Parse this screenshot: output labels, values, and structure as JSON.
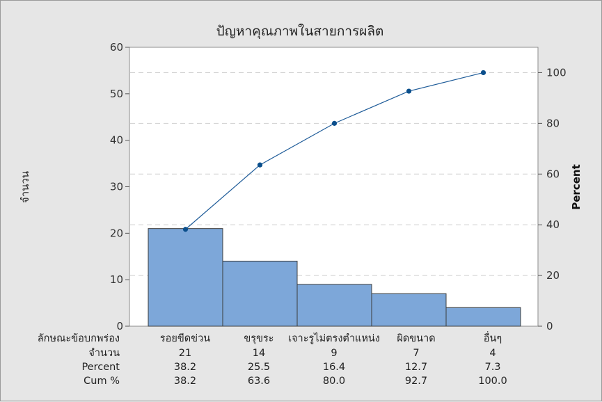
{
  "chart_data": {
    "type": "bar",
    "title": "ปัญหาคุณภาพในสายการผลิต",
    "ylabel": "จำนวน",
    "ylabel_right": "Percent",
    "ylim": [
      0,
      60
    ],
    "y_ticks": [
      0,
      10,
      20,
      30,
      40,
      50,
      60
    ],
    "ylim_right": [
      0,
      110
    ],
    "y_ticks_right": [
      0,
      20,
      40,
      60,
      80,
      100
    ],
    "grid": "horizontal dashed at right-axis ticks",
    "categories": [
      "รอยขีดข่วน",
      "ขรุขระ",
      "เจาะรูไม่ตรงตำแหน่ง",
      "ผิดขนาด",
      "อื่นๆ"
    ],
    "series": [
      {
        "name": "จำนวน",
        "type": "bar",
        "values": [
          21,
          14,
          9,
          7,
          4
        ]
      },
      {
        "name": "Cum %",
        "type": "line",
        "values": [
          38.2,
          63.6,
          80.0,
          92.7,
          100.0
        ]
      }
    ],
    "table": {
      "header": "ลักษณะข้อบกพร่อง",
      "rows": [
        {
          "label": "จำนวน",
          "values": [
            "21",
            "14",
            "9",
            "7",
            "4"
          ]
        },
        {
          "label": "Percent",
          "values": [
            "38.2",
            "25.5",
            "16.4",
            "12.7",
            "7.3"
          ]
        },
        {
          "label": "Cum %",
          "values": [
            "38.2",
            "63.6",
            "80.0",
            "92.7",
            "100.0"
          ]
        }
      ]
    },
    "colors": {
      "bar_fill": "#7da7d9",
      "bar_stroke": "#3c3c3c",
      "line": "#1f5c99",
      "marker": "#0b4f8c",
      "plot_bg": "#ffffff",
      "grid": "#cfcfcf"
    }
  }
}
